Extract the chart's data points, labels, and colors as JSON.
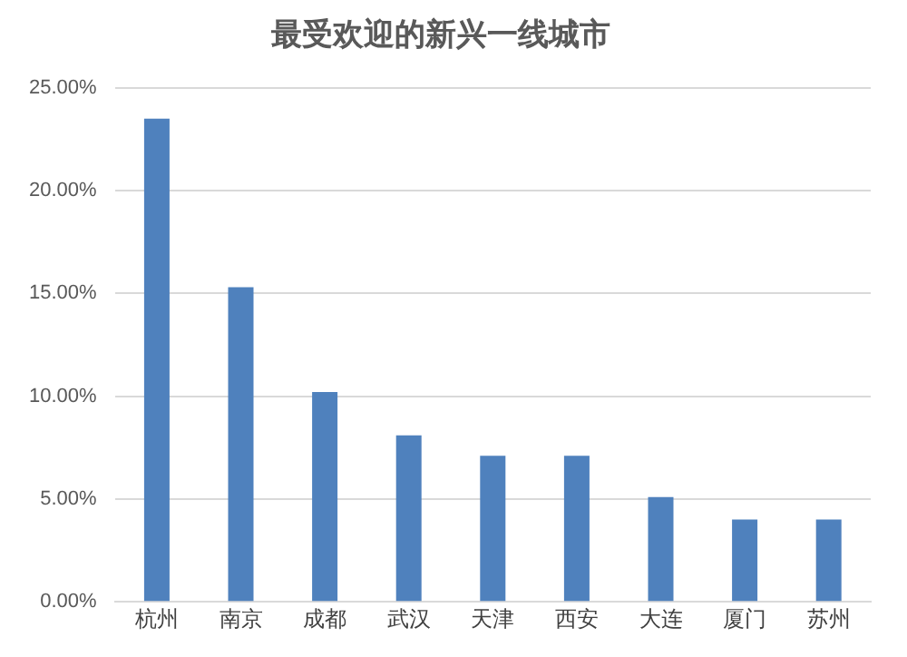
{
  "chart_data": {
    "type": "bar",
    "title": "最受欢迎的新兴一线城市",
    "categories": [
      "杭州",
      "南京",
      "成都",
      "武汉",
      "天津",
      "西安",
      "大连",
      "厦门",
      "苏州"
    ],
    "values": [
      23.5,
      15.3,
      10.2,
      8.1,
      7.1,
      7.1,
      5.1,
      4.0,
      4.0
    ],
    "color": "#4f81bd",
    "ylim": [
      0,
      25
    ],
    "yticks": [
      {
        "value": 0,
        "label": "0.00%"
      },
      {
        "value": 5,
        "label": "5.00%"
      },
      {
        "value": 10,
        "label": "10.00%"
      },
      {
        "value": 15,
        "label": "15.00%"
      },
      {
        "value": 20,
        "label": "20.00%"
      },
      {
        "value": 25,
        "label": "25.00%"
      }
    ],
    "grid": "y"
  }
}
